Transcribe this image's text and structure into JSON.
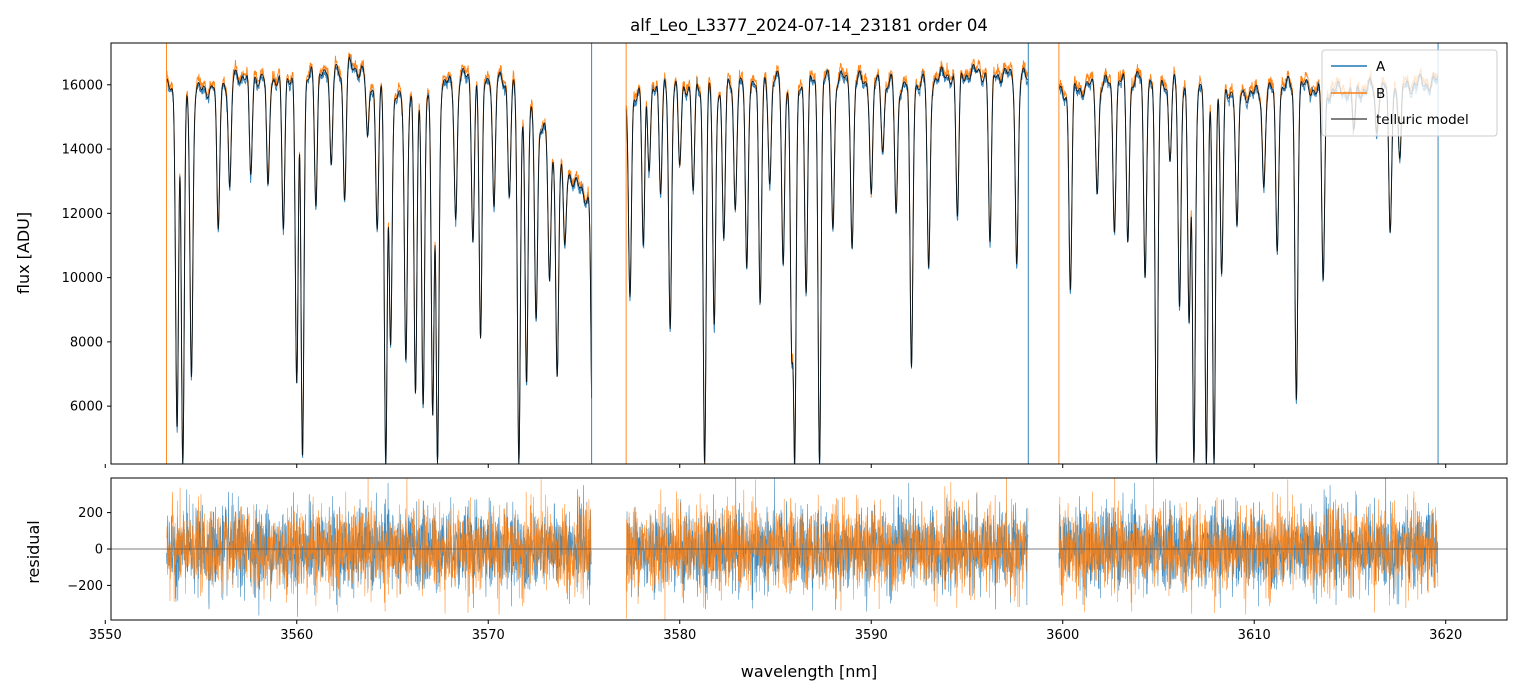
{
  "chart_data": {
    "type": "line",
    "title": "alf_Leo_L3377_2024-07-14_23181  order 04",
    "xlabel": "wavelength [nm]",
    "xlim": [
      3550.3,
      3623.2
    ],
    "x_ticks": [
      3550,
      3560,
      3570,
      3580,
      3590,
      3600,
      3610,
      3620
    ],
    "x_tick_labels": [
      "3550",
      "3560",
      "3570",
      "3580",
      "3590",
      "3600",
      "3610",
      "3620"
    ],
    "panels": [
      {
        "id": "flux",
        "ylabel": "flux [ADU]",
        "ylim": [
          4200,
          17300
        ],
        "y_ticks": [
          6000,
          8000,
          10000,
          12000,
          14000,
          16000
        ],
        "y_tick_labels": [
          "6000",
          "8000",
          "10000",
          "12000",
          "14000",
          "16000"
        ],
        "continuum": [
          [
            3553.2,
            15900
          ],
          [
            3555.0,
            15800
          ],
          [
            3557.0,
            16300
          ],
          [
            3559.0,
            16200
          ],
          [
            3561.0,
            16500
          ],
          [
            3563.0,
            16600
          ],
          [
            3565.0,
            15500
          ],
          [
            3567.0,
            15800
          ],
          [
            3569.0,
            16300
          ],
          [
            3571.0,
            16200
          ],
          [
            3573.0,
            14500
          ],
          [
            3575.0,
            12500
          ],
          [
            3575.5,
            12800
          ],
          [
            3577.2,
            15200
          ],
          [
            3578.0,
            16100
          ],
          [
            3580.0,
            16000
          ],
          [
            3582.0,
            15900
          ],
          [
            3584.0,
            16200
          ],
          [
            3586.0,
            16100
          ],
          [
            3588.0,
            16200
          ],
          [
            3590.0,
            16100
          ],
          [
            3592.0,
            16000
          ],
          [
            3594.0,
            16300
          ],
          [
            3596.0,
            16400
          ],
          [
            3598.2,
            16200
          ],
          [
            3599.8,
            15800
          ],
          [
            3602.0,
            16000
          ],
          [
            3604.0,
            16200
          ],
          [
            3606.0,
            16100
          ],
          [
            3608.0,
            15900
          ],
          [
            3610.0,
            15700
          ],
          [
            3612.0,
            16000
          ],
          [
            3614.0,
            15800
          ],
          [
            3616.0,
            15900
          ],
          [
            3618.0,
            16000
          ],
          [
            3619.6,
            16100
          ]
        ],
        "absorption_lines": [
          [
            3553.75,
            5300
          ],
          [
            3554.05,
            4200
          ],
          [
            3554.5,
            6900
          ],
          [
            3555.9,
            11500
          ],
          [
            3556.5,
            12800
          ],
          [
            3557.6,
            13200
          ],
          [
            3558.5,
            12900
          ],
          [
            3559.3,
            11500
          ],
          [
            3560.0,
            6700
          ],
          [
            3560.3,
            4400
          ],
          [
            3561.0,
            12200
          ],
          [
            3561.8,
            13500
          ],
          [
            3562.5,
            12400
          ],
          [
            3563.7,
            14400
          ],
          [
            3564.2,
            11500
          ],
          [
            3564.65,
            4200
          ],
          [
            3564.9,
            7900
          ],
          [
            3565.7,
            7400
          ],
          [
            3566.2,
            6400
          ],
          [
            3566.6,
            6000
          ],
          [
            3567.1,
            5700
          ],
          [
            3567.35,
            4200
          ],
          [
            3568.3,
            11800
          ],
          [
            3569.2,
            11100
          ],
          [
            3569.6,
            8100
          ],
          [
            3570.3,
            12200
          ],
          [
            3571.1,
            12500
          ],
          [
            3571.6,
            4200
          ],
          [
            3572.0,
            6700
          ],
          [
            3572.5,
            8700
          ],
          [
            3573.2,
            9900
          ],
          [
            3573.6,
            6900
          ],
          [
            3574.0,
            11000
          ],
          [
            3575.45,
            4200
          ],
          [
            3577.4,
            9400
          ],
          [
            3578.1,
            11000
          ],
          [
            3578.4,
            13300
          ],
          [
            3579.0,
            12600
          ],
          [
            3579.5,
            8400
          ],
          [
            3580.0,
            13500
          ],
          [
            3580.7,
            12700
          ],
          [
            3581.3,
            4200
          ],
          [
            3581.8,
            8500
          ],
          [
            3582.3,
            11200
          ],
          [
            3582.9,
            12100
          ],
          [
            3583.5,
            10300
          ],
          [
            3584.2,
            9200
          ],
          [
            3584.7,
            12900
          ],
          [
            3585.4,
            10400
          ],
          [
            3585.85,
            7900
          ],
          [
            3586.0,
            4200
          ],
          [
            3586.6,
            9500
          ],
          [
            3587.3,
            4200
          ],
          [
            3588.0,
            11500
          ],
          [
            3589.0,
            10900
          ],
          [
            3590.0,
            12600
          ],
          [
            3590.6,
            13900
          ],
          [
            3591.3,
            12000
          ],
          [
            3592.1,
            7200
          ],
          [
            3593.0,
            10300
          ],
          [
            3594.5,
            11900
          ],
          [
            3596.2,
            11100
          ],
          [
            3597.6,
            10400
          ],
          [
            3598.4,
            12700
          ],
          [
            3600.4,
            9600
          ],
          [
            3601.8,
            12600
          ],
          [
            3602.7,
            11400
          ],
          [
            3603.4,
            11100
          ],
          [
            3604.3,
            10000
          ],
          [
            3604.9,
            4200
          ],
          [
            3605.6,
            13600
          ],
          [
            3606.1,
            9100
          ],
          [
            3606.6,
            8600
          ],
          [
            3606.85,
            4200
          ],
          [
            3607.5,
            4200
          ],
          [
            3607.9,
            4200
          ],
          [
            3608.3,
            10100
          ],
          [
            3609.1,
            11600
          ],
          [
            3610.5,
            12800
          ],
          [
            3611.2,
            10800
          ],
          [
            3612.2,
            6200
          ],
          [
            3613.6,
            9900
          ],
          [
            3615.2,
            14600
          ],
          [
            3616.4,
            14500
          ],
          [
            3617.1,
            11400
          ],
          [
            3617.6,
            13700
          ]
        ],
        "series": [
          {
            "name": "A",
            "color": "#1f77b4"
          },
          {
            "name": "B",
            "color": "#ff7f0e"
          },
          {
            "name": "telluric model",
            "color": "#000000"
          }
        ],
        "legend": [
          "A",
          "B",
          "telluric model"
        ],
        "legend_position": "top-right"
      },
      {
        "id": "residual",
        "ylabel": "residual",
        "ylim": [
          -390,
          390
        ],
        "y_ticks": [
          -200,
          0,
          200
        ],
        "y_tick_labels": [
          "−200",
          "0",
          "200"
        ],
        "zero_line": 0,
        "noise_std": 110,
        "segments": [
          [
            3553.2,
            3575.4
          ],
          [
            3577.2,
            3598.2
          ],
          [
            3599.8,
            3619.6
          ]
        ]
      }
    ]
  }
}
